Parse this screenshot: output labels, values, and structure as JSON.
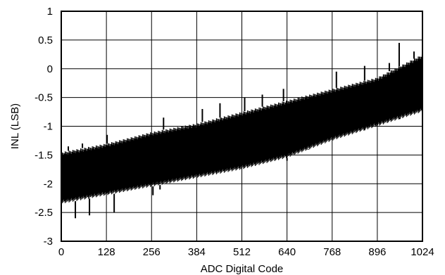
{
  "chart_data": {
    "type": "line",
    "title": "",
    "xlabel": "ADC Digital Code",
    "ylabel": "INL (LSB)",
    "xlim": [
      0,
      1024
    ],
    "ylim": [
      -3,
      1
    ],
    "xticks": [
      0,
      128,
      256,
      384,
      512,
      640,
      768,
      896,
      1024
    ],
    "yticks": [
      -3,
      -2.5,
      -2,
      -1.5,
      -1,
      -0.5,
      0,
      0.5,
      1
    ],
    "xtick_labels": [
      "0",
      "128",
      "256",
      "384",
      "512",
      "640",
      "768",
      "896",
      "1024"
    ],
    "ytick_labels": [
      "-3",
      "-2.5",
      "-2",
      "-1.5",
      "-1",
      "-0.5",
      "0",
      "0.5",
      "1"
    ],
    "grid": true,
    "legend": "none",
    "color": "#000000",
    "series": [
      {
        "band_x": [
          0,
          128,
          256,
          384,
          512,
          640,
          768,
          896,
          1024
        ],
        "band_upper": [
          -1.45,
          -1.3,
          -1.1,
          -0.95,
          -0.75,
          -0.55,
          -0.35,
          -0.15,
          0.25
        ],
        "band_lower": [
          -2.35,
          -2.2,
          -2.05,
          -1.9,
          -1.75,
          -1.55,
          -1.25,
          -1.0,
          -0.75
        ],
        "spikes_up": [
          [
            20,
            -1.35
          ],
          [
            60,
            -1.3
          ],
          [
            130,
            -1.15
          ],
          [
            290,
            -0.85
          ],
          [
            400,
            -0.7
          ],
          [
            450,
            -0.6
          ],
          [
            520,
            -0.5
          ],
          [
            570,
            -0.45
          ],
          [
            630,
            -0.35
          ],
          [
            780,
            -0.05
          ],
          [
            860,
            0.05
          ],
          [
            930,
            0.1
          ],
          [
            958,
            0.45
          ],
          [
            1000,
            0.3
          ]
        ],
        "spikes_down": [
          [
            40,
            -2.6
          ],
          [
            80,
            -2.55
          ],
          [
            150,
            -2.5
          ],
          [
            260,
            -2.2
          ],
          [
            280,
            -2.1
          ],
          [
            640,
            -1.6
          ],
          [
            700,
            -1.4
          ],
          [
            860,
            -1.0
          ],
          [
            960,
            -0.85
          ]
        ]
      }
    ]
  }
}
